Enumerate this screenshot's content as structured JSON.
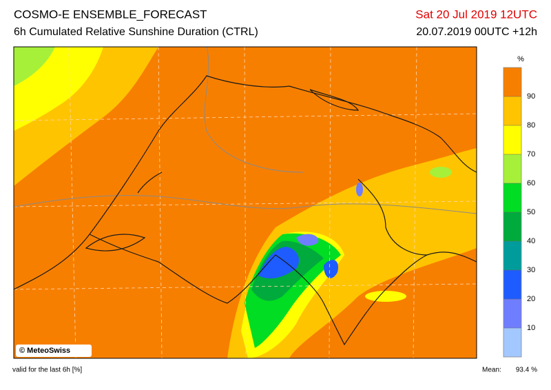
{
  "header": {
    "title": "COSMO-E ENSEMBLE_FORECAST",
    "subtitle": "6h Cumulated Relative Sunshine Duration (CTRL)",
    "valid_time": "Sat 20 Jul 2019 12UTC",
    "run": "20.07.2019 00UTC +12h"
  },
  "map": {
    "credit": "© MeteoSwiss"
  },
  "colorbar": {
    "unit": "%",
    "ticks": [
      10,
      20,
      30,
      40,
      50,
      60,
      70,
      80,
      90
    ],
    "colors": [
      "#a3c8ff",
      "#6f7dff",
      "#1e5cff",
      "#009c9c",
      "#00aa3c",
      "#00dd22",
      "#a6f03a",
      "#ffff00",
      "#ffc400",
      "#f77f00"
    ]
  },
  "footer": {
    "note": "valid for the last 6h [%]",
    "mean_label": "Mean:",
    "mean_value": "93.4 %"
  }
}
